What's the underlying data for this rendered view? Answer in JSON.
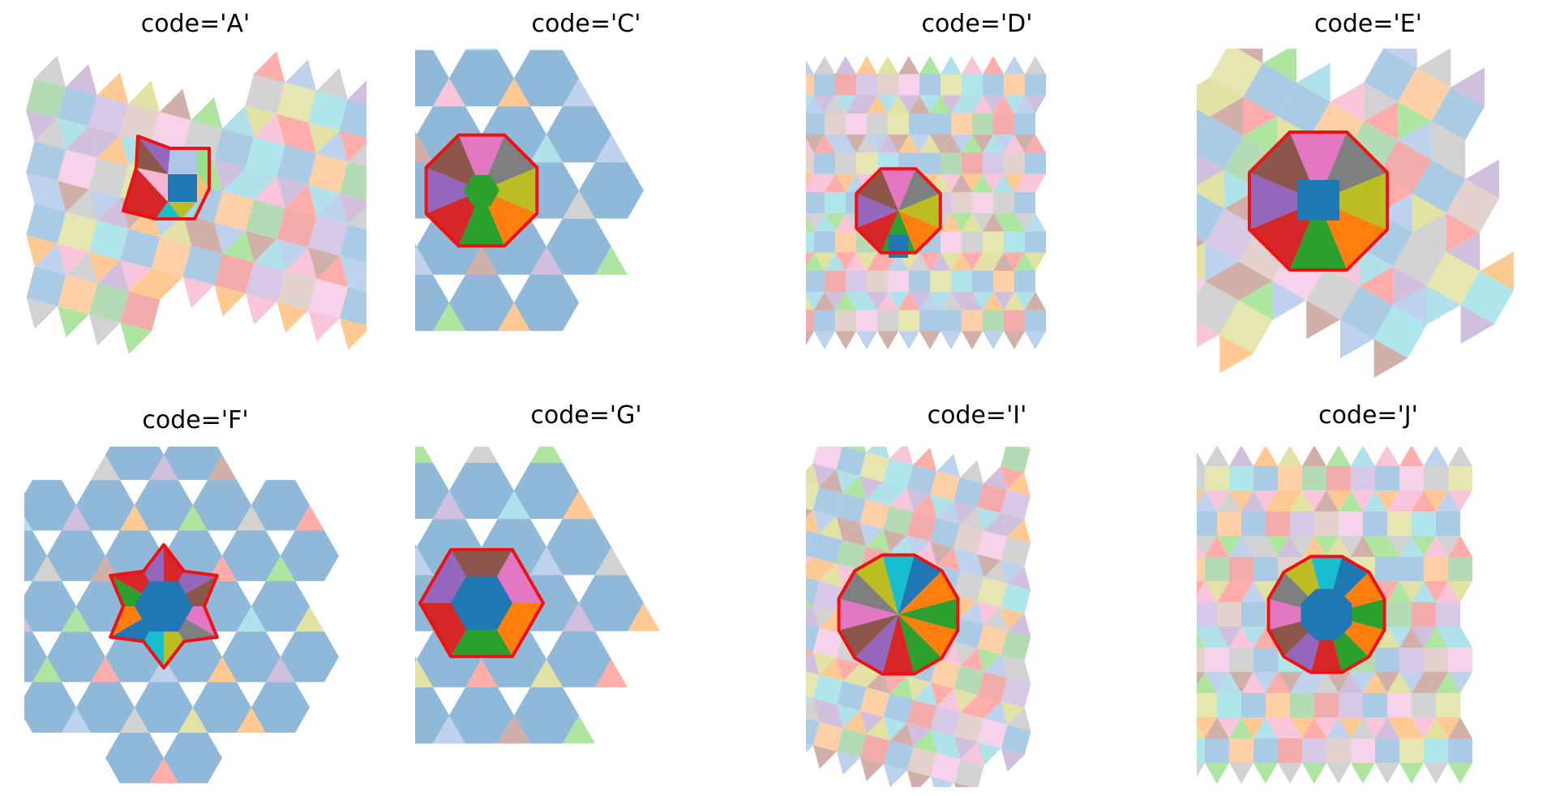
{
  "figure": {
    "panels": [
      {
        "code": "A",
        "title": "code='A'",
        "lattice": "square-triangle",
        "motif": "hexagon-6-tiles"
      },
      {
        "code": "C",
        "title": "code='C'",
        "lattice": "hexagon-square-triangle",
        "motif": "octagon-10-tiles"
      },
      {
        "code": "D",
        "title": "code='D'",
        "lattice": "square-triangle",
        "motif": "octagon-10-tiles"
      },
      {
        "code": "E",
        "title": "code='E'",
        "lattice": "square-triangle",
        "motif": "octagon-10-tiles"
      },
      {
        "code": "F",
        "title": "code='F'",
        "lattice": "hexagon-triangle",
        "motif": "star-12-tiles"
      },
      {
        "code": "G",
        "title": "code='G'",
        "lattice": "hexagon-triangle",
        "motif": "hexagon-13-tiles"
      },
      {
        "code": "I",
        "title": "code='I'",
        "lattice": "dodecagon-square-triangle",
        "motif": "dodecagon-12-tiles"
      },
      {
        "code": "J",
        "title": "code='J'",
        "lattice": "dodecagon-square-triangle",
        "motif": "dodecagon-12-tiles"
      }
    ],
    "colors": {
      "highlight_outline": "#ee1111",
      "palette_strong": [
        "#1f77b4",
        "#ff7f0e",
        "#2ca02c",
        "#d62728",
        "#9467bd",
        "#8c564b",
        "#e377c2",
        "#7f7f7f",
        "#bcbd22",
        "#17becf"
      ],
      "palette_light": [
        "#aec7e8",
        "#ffbb78",
        "#98df8a",
        "#ff9896",
        "#c5b0d5",
        "#c49c94",
        "#f7b6d2",
        "#c7c7c7",
        "#dbdb8d",
        "#9edae5"
      ],
      "palette_pale": [
        "#8fb8d9",
        "#fec08a",
        "#9ccf9c",
        "#ee9090",
        "#c9b6e0",
        "#d8c2bc",
        "#f4c4e4",
        "#c4c4c4",
        "#dddd95",
        "#94dde6"
      ]
    }
  }
}
